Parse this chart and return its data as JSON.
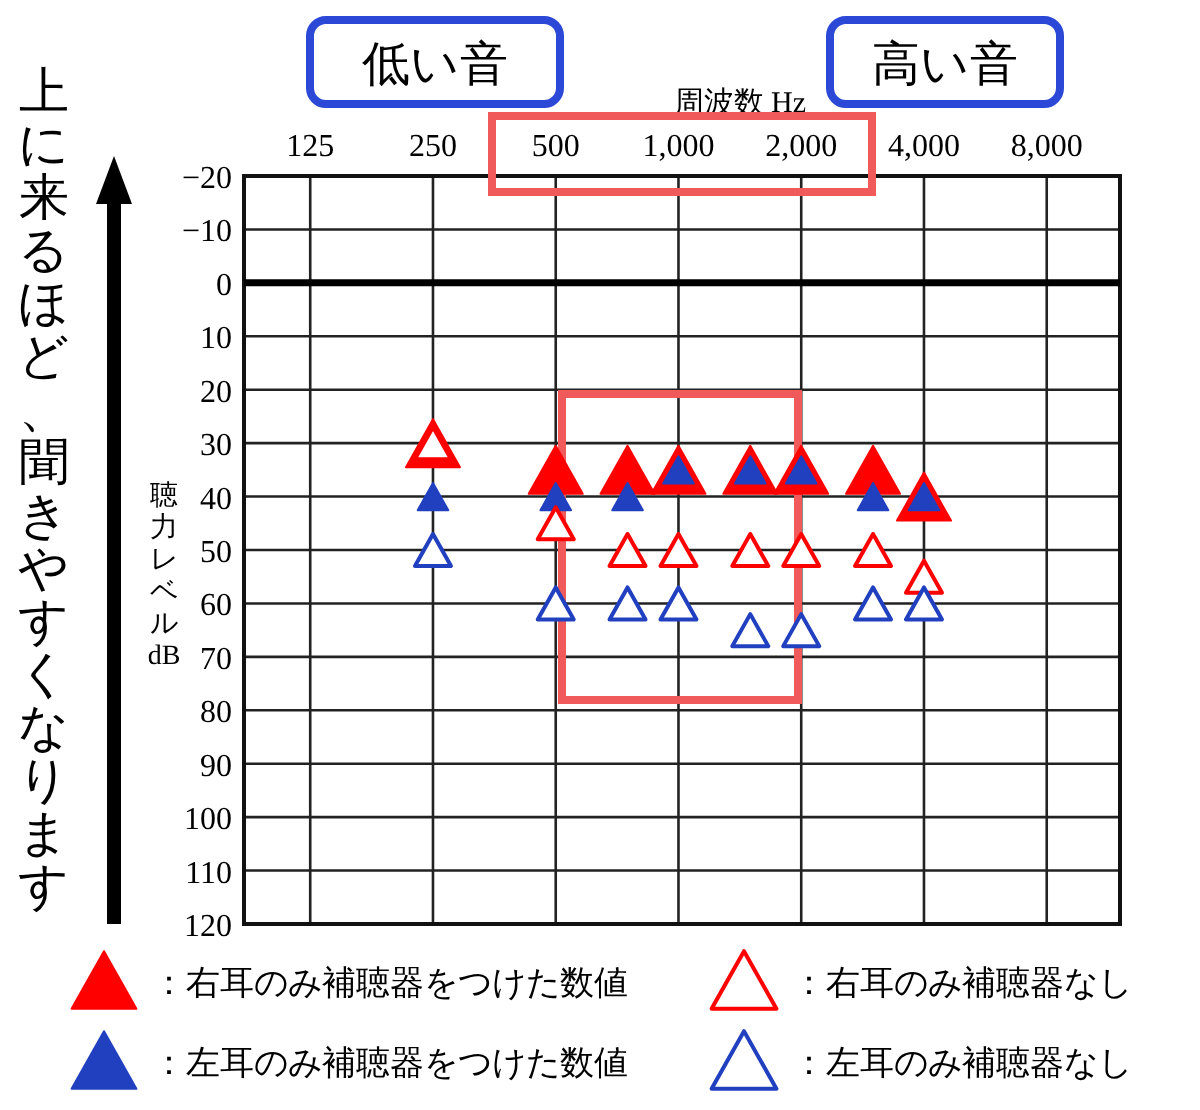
{
  "chart_data": {
    "type": "scatter",
    "xlabel": "周波数 Hz",
    "ylabel": "聴力レベル dB",
    "annotations": [
      "低い音",
      "高い音",
      "上に来るほど、聞きやすくなります"
    ],
    "log": "x",
    "xlim": [
      86,
      12100
    ],
    "xticks": [
      125,
      250,
      500,
      {
        "value": 1000,
        "label": "1,000"
      },
      {
        "value": 2000,
        "label": "2,000"
      },
      {
        "value": 4000,
        "label": "4,000"
      },
      {
        "value": 8000,
        "label": "8,000"
      }
    ],
    "ylim": [
      120,
      -20
    ],
    "yticks": [
      {
        "value": -20,
        "label": "−20"
      },
      {
        "value": -10,
        "label": "−10"
      },
      0,
      10,
      20,
      30,
      40,
      50,
      60,
      70,
      80,
      90,
      100,
      110,
      120
    ],
    "grid": true,
    "legend": "bottom",
    "ref_lines": [
      {
        "axis": "y",
        "value": 0,
        "color": "#000000"
      }
    ],
    "x": [
      250,
      500,
      750,
      1000,
      1500,
      2000,
      3000,
      4000
    ],
    "series": [
      {
        "name": "：右耳のみ補聴器をつけた数値",
        "color": "#ff0000",
        "marker": "triangle",
        "values": [
          30,
          35,
          35,
          35,
          35,
          35,
          35,
          40
        ]
      },
      {
        "name": "：左耳のみ補聴器をつけた数値",
        "color": "#2040c0",
        "marker": "triangle",
        "values": [
          40,
          40,
          40,
          35,
          35,
          35,
          40,
          40
        ]
      },
      {
        "name": "：右耳のみ補聴器なし",
        "color": "#ff0000",
        "marker": "triangle-open",
        "values": [
          30,
          45,
          50,
          50,
          50,
          50,
          50,
          55
        ]
      },
      {
        "name": "：左耳のみ補聴器なし",
        "color": "#2040c0",
        "marker": "triangle-open",
        "values": [
          50,
          60,
          60,
          60,
          65,
          65,
          60,
          60
        ]
      }
    ]
  }
}
